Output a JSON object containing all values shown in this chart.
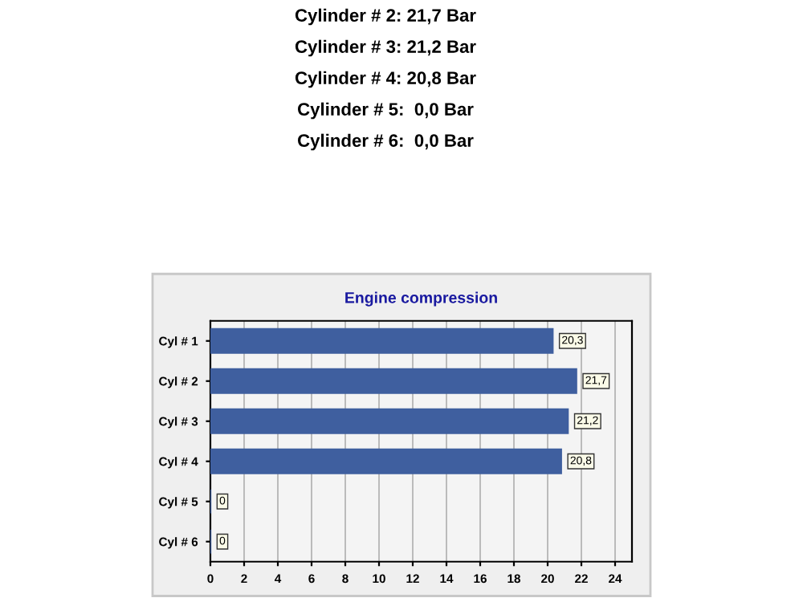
{
  "chart_data": {
    "type": "bar",
    "orientation": "horizontal",
    "title": "Engine compression",
    "annotations": [
      "Cylinder # 2: 21,7 Bar",
      "Cylinder # 3: 21,2 Bar",
      "Cylinder # 4: 20,8 Bar",
      "Cylinder # 5:  0,0 Bar",
      "Cylinder # 6:  0,0 Bar"
    ],
    "categories": [
      "Cyl # 1",
      "Cyl # 2",
      "Cyl # 3",
      "Cyl # 4",
      "Cyl # 5",
      "Cyl # 6"
    ],
    "values": [
      20.3,
      21.7,
      21.2,
      20.8,
      0,
      0
    ],
    "value_labels": [
      "20,3",
      "21,7",
      "21,2",
      "20,8",
      "0",
      "0"
    ],
    "color": "#3f5f9f",
    "xlim": [
      0,
      25
    ],
    "xticks": [
      0,
      2,
      4,
      6,
      8,
      10,
      12,
      14,
      16,
      18,
      20,
      22,
      24
    ],
    "grid": "x",
    "legend": false
  }
}
